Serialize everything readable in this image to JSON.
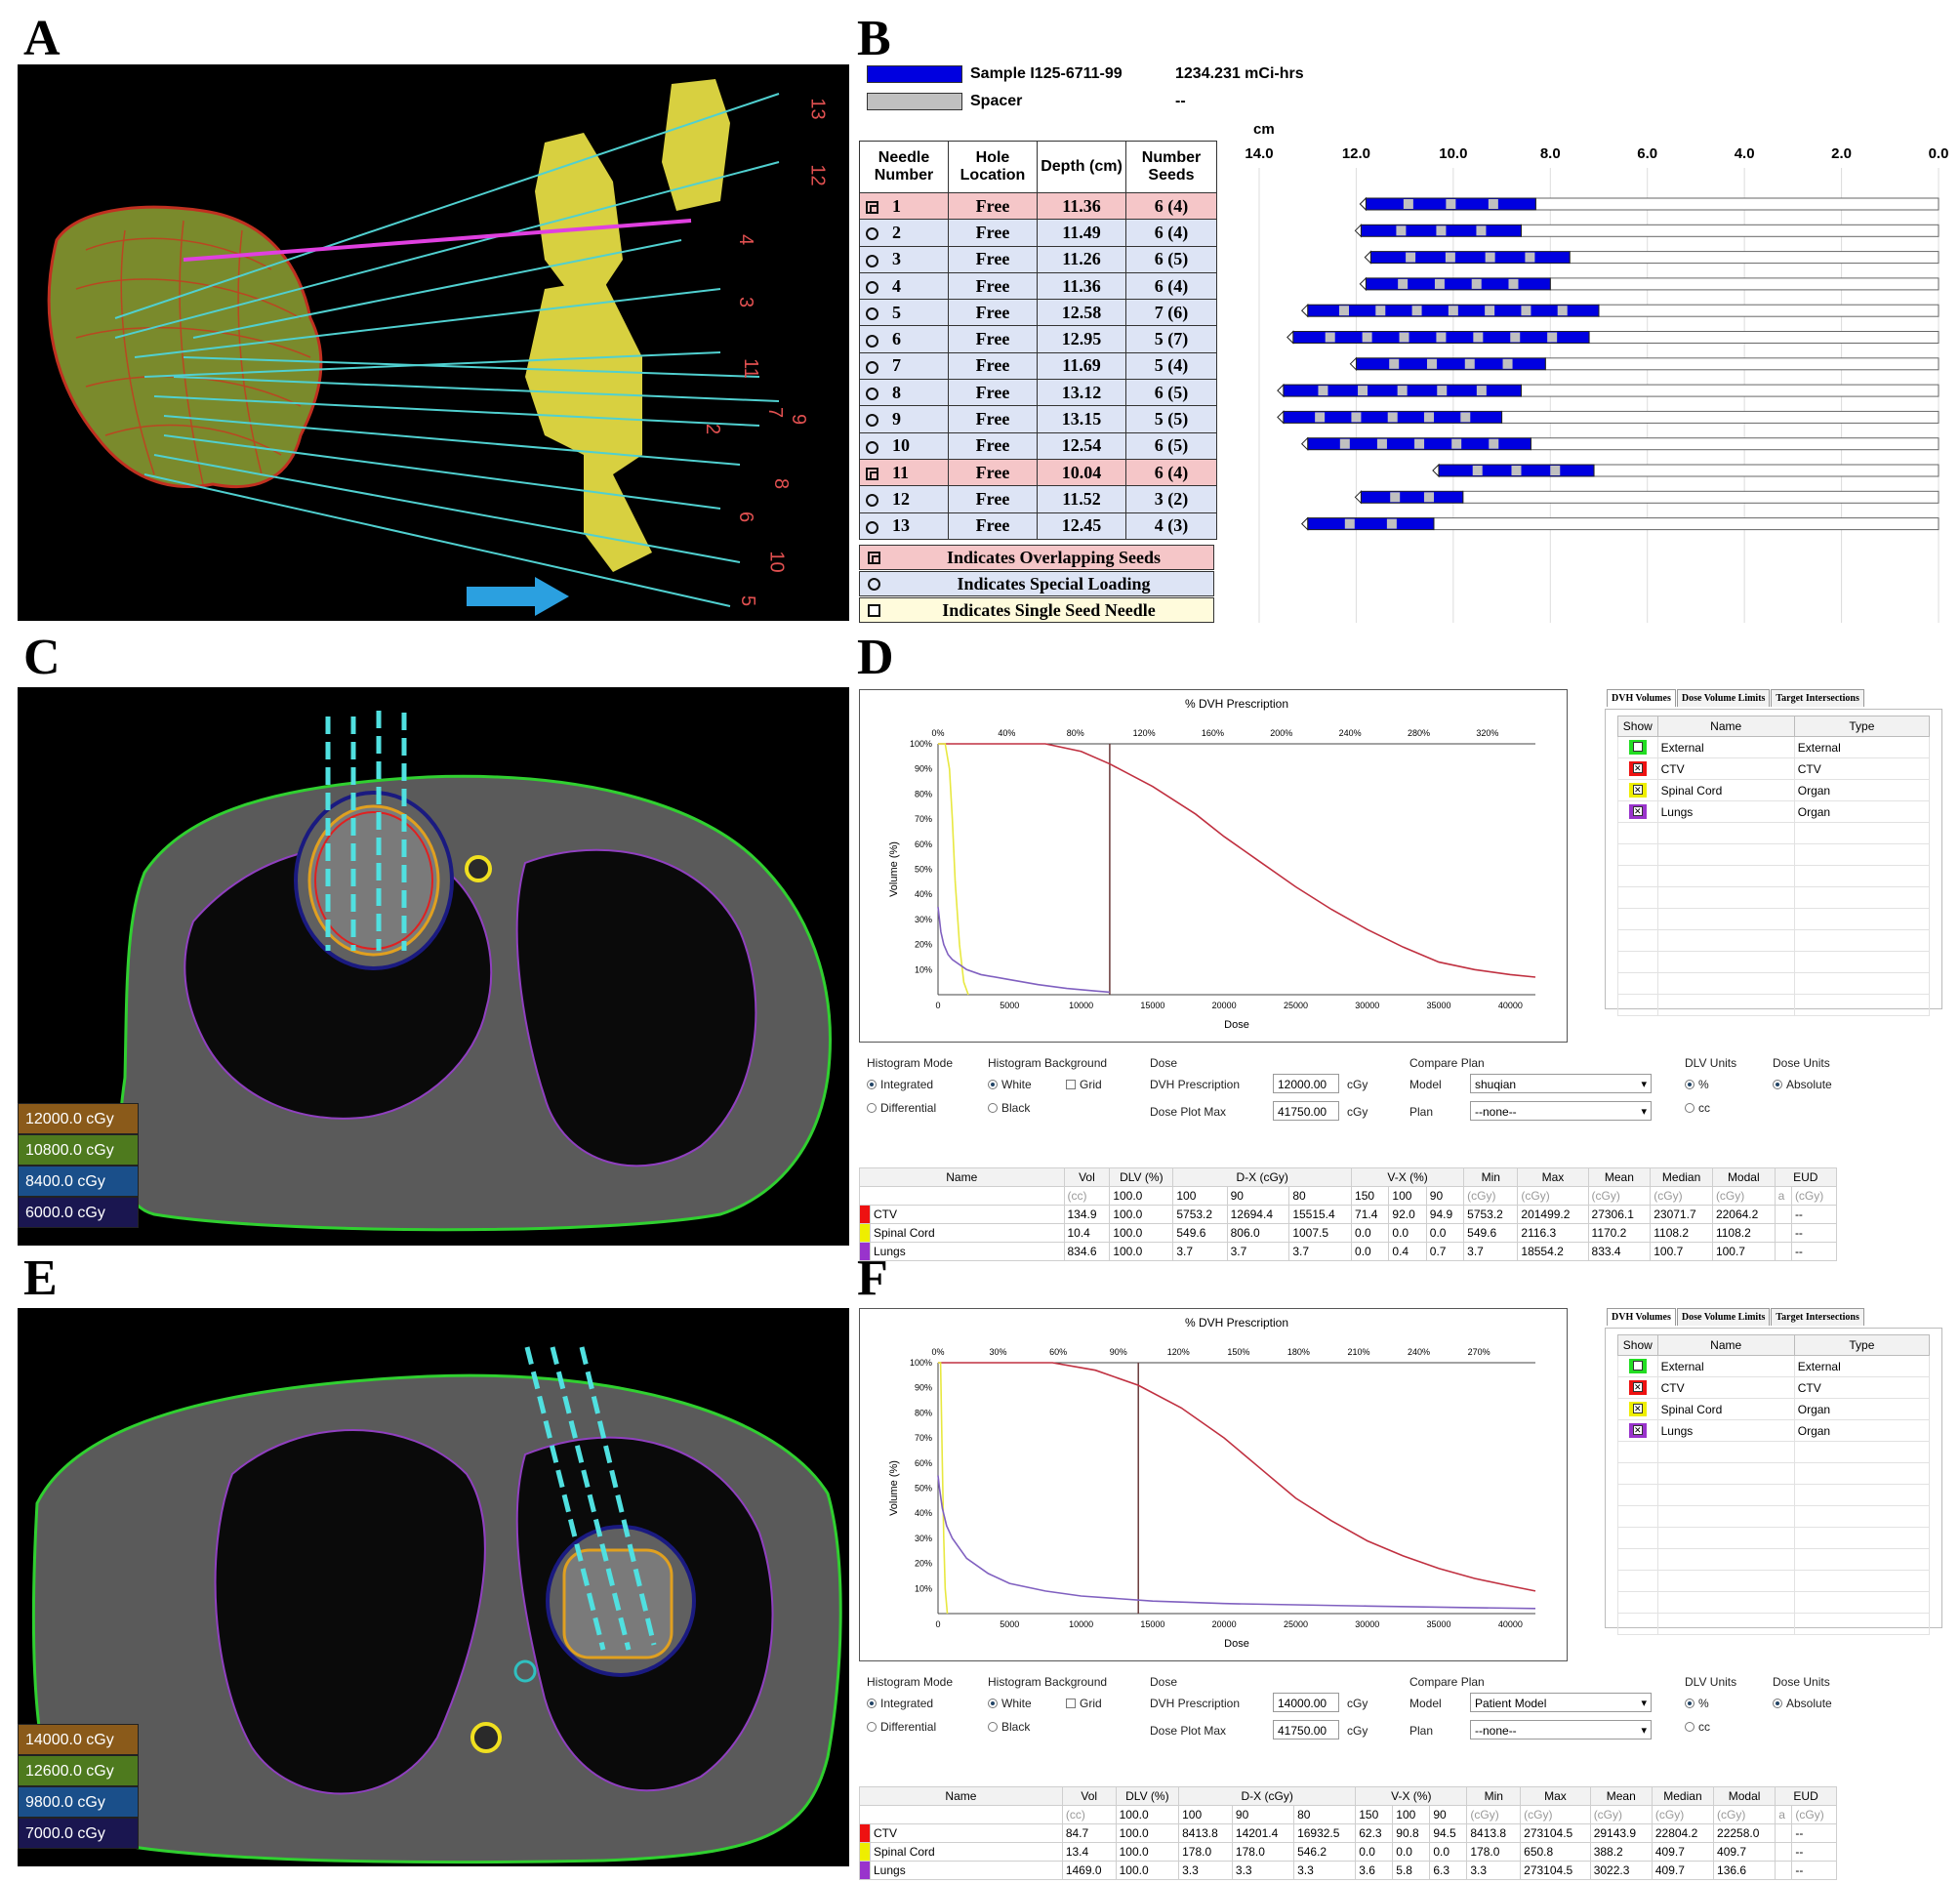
{
  "panel_labels": {
    "a": "A",
    "b": "B",
    "c": "C",
    "d": "D",
    "e": "E",
    "f": "F"
  },
  "panel_a": {
    "needle_labels": [
      "13",
      "12",
      "4",
      "3",
      "11",
      "7",
      "9",
      "2",
      "8",
      "6",
      "10",
      "5"
    ]
  },
  "panel_b": {
    "legend": [
      {
        "name": "Sample I125-6711-99",
        "value": "1234.231 mCi-hrs",
        "color": "#0000e0"
      },
      {
        "name": "Spacer",
        "value": "--",
        "color": "#c0c0c0"
      }
    ],
    "columns": [
      "Needle Number",
      "Hole Location",
      "Depth (cm)",
      "Number Seeds"
    ],
    "rows": [
      {
        "num": "1",
        "loc": "Free",
        "depth": "11.36",
        "seeds": "6 (4)",
        "flag": "overlap"
      },
      {
        "num": "2",
        "loc": "Free",
        "depth": "11.49",
        "seeds": "6 (4)",
        "flag": "special"
      },
      {
        "num": "3",
        "loc": "Free",
        "depth": "11.26",
        "seeds": "6 (5)",
        "flag": "special"
      },
      {
        "num": "4",
        "loc": "Free",
        "depth": "11.36",
        "seeds": "6 (4)",
        "flag": "special"
      },
      {
        "num": "5",
        "loc": "Free",
        "depth": "12.58",
        "seeds": "7 (6)",
        "flag": "special"
      },
      {
        "num": "6",
        "loc": "Free",
        "depth": "12.95",
        "seeds": "5 (7)",
        "flag": "special"
      },
      {
        "num": "7",
        "loc": "Free",
        "depth": "11.69",
        "seeds": "5 (4)",
        "flag": "special"
      },
      {
        "num": "8",
        "loc": "Free",
        "depth": "13.12",
        "seeds": "6 (5)",
        "flag": "special"
      },
      {
        "num": "9",
        "loc": "Free",
        "depth": "13.15",
        "seeds": "5 (5)",
        "flag": "special"
      },
      {
        "num": "10",
        "loc": "Free",
        "depth": "12.54",
        "seeds": "6 (5)",
        "flag": "special"
      },
      {
        "num": "11",
        "loc": "Free",
        "depth": "10.04",
        "seeds": "6 (4)",
        "flag": "overlap"
      },
      {
        "num": "12",
        "loc": "Free",
        "depth": "11.52",
        "seeds": "3 (2)",
        "flag": "special"
      },
      {
        "num": "13",
        "loc": "Free",
        "depth": "12.45",
        "seeds": "4 (3)",
        "flag": "special"
      }
    ],
    "key": [
      "Indicates Overlapping Seeds",
      "Indicates Special Loading",
      "Indicates Single Seed Needle"
    ],
    "axis_unit": "cm",
    "axis_ticks": [
      "14.0",
      "12.0",
      "10.0",
      "8.0",
      "6.0",
      "4.0",
      "2.0",
      "0.0"
    ],
    "needle_spans": [
      {
        "start": 11.8,
        "end": 8.3
      },
      {
        "start": 11.9,
        "end": 8.6
      },
      {
        "start": 11.7,
        "end": 7.6
      },
      {
        "start": 11.8,
        "end": 8.0
      },
      {
        "start": 13.0,
        "end": 7.0
      },
      {
        "start": 13.3,
        "end": 7.2
      },
      {
        "start": 12.0,
        "end": 8.1
      },
      {
        "start": 13.5,
        "end": 8.6
      },
      {
        "start": 13.5,
        "end": 9.0
      },
      {
        "start": 13.0,
        "end": 8.4
      },
      {
        "start": 10.3,
        "end": 7.1
      },
      {
        "start": 11.9,
        "end": 9.8
      },
      {
        "start": 13.0,
        "end": 10.4
      }
    ]
  },
  "panel_c": {
    "dose_legend": [
      {
        "label": "12000.0 cGy",
        "color": "#8a5a1a"
      },
      {
        "label": "10800.0 cGy",
        "color": "#4e7a1e"
      },
      {
        "label": "8400.0 cGy",
        "color": "#1a4f8a"
      },
      {
        "label": "6000.0 cGy",
        "color": "#1a1650"
      }
    ]
  },
  "panel_e": {
    "dose_legend": [
      {
        "label": "14000.0 cGy",
        "color": "#8a5a1a"
      },
      {
        "label": "12600.0 cGy",
        "color": "#4e7a1e"
      },
      {
        "label": "9800.0 cGy",
        "color": "#1a4f8a"
      },
      {
        "label": "7000.0 cGy",
        "color": "#1a1650"
      }
    ]
  },
  "panel_d": {
    "chart_title": "% DVH Prescription",
    "x_label": "Dose",
    "y_label": "Volume (%)",
    "top_ticks": [
      "0%",
      "40%",
      "80%",
      "120%",
      "160%",
      "200%",
      "240%",
      "280%",
      "320%"
    ],
    "bottom_ticks": [
      "0",
      "5000",
      "10000",
      "15000",
      "20000",
      "25000",
      "30000",
      "35000",
      "40000"
    ],
    "y_ticks": [
      "100%",
      "90%",
      "80%",
      "70%",
      "60%",
      "50%",
      "40%",
      "30%",
      "20%",
      "10%"
    ],
    "tabs": [
      "DVH Volumes",
      "Dose Volume Limits",
      "Target Intersections"
    ],
    "show_headers": [
      "Show",
      "Name",
      "Type"
    ],
    "structures": [
      {
        "name": "External",
        "type": "External",
        "color": "#22dd22",
        "checked": false
      },
      {
        "name": "CTV",
        "type": "CTV",
        "color": "#ee1111",
        "checked": true
      },
      {
        "name": "Spinal Cord",
        "type": "Organ",
        "color": "#eeee00",
        "checked": true
      },
      {
        "name": "Lungs",
        "type": "Organ",
        "color": "#9933cc",
        "checked": true
      }
    ],
    "controls": {
      "hist_mode_title": "Histogram Mode",
      "integrated": "Integrated",
      "differential": "Differential",
      "hist_bg_title": "Histogram Background",
      "white": "White",
      "black": "Black",
      "grid": "Grid",
      "dose_title": "Dose",
      "dvh_prescription_label": "DVH Prescription",
      "dvh_prescription_value": "12000.00",
      "dose_plot_max_label": "Dose Plot Max",
      "dose_plot_max_value": "41750.00",
      "unit": "cGy",
      "compare_title": "Compare Plan",
      "model_label": "Model",
      "model_value": "shuqian",
      "plan_label": "Plan",
      "plan_value": "--none--",
      "dlv_units_title": "DLV Units",
      "percent": "%",
      "cc": "cc",
      "dose_units_title": "Dose Units",
      "absolute": "Absolute"
    },
    "stats_header": [
      "Name",
      "Vol",
      "DLV (%)",
      "D-X (cGy)",
      "V-X (%)",
      "Min",
      "Max",
      "Mean",
      "Median",
      "Modal",
      "EUD"
    ],
    "stats_sub": [
      "(cc)",
      "100.0",
      "100",
      "90",
      "80",
      "150",
      "100",
      "90",
      "(cGy)",
      "(cGy)",
      "(cGy)",
      "(cGy)",
      "(cGy)",
      "a",
      "(cGy)"
    ],
    "stats_rows": [
      {
        "color": "#ee1111",
        "cells": [
          "CTV",
          "134.9",
          "100.0",
          "5753.2",
          "12694.4",
          "15515.4",
          "71.4",
          "92.0",
          "94.9",
          "5753.2",
          "201499.2",
          "27306.1",
          "23071.7",
          "22064.2",
          "",
          "--"
        ]
      },
      {
        "color": "#eeee00",
        "cells": [
          "Spinal Cord",
          "10.4",
          "100.0",
          "549.6",
          "806.0",
          "1007.5",
          "0.0",
          "0.0",
          "0.0",
          "549.6",
          "2116.3",
          "1170.2",
          "1108.2",
          "1108.2",
          "",
          "--"
        ]
      },
      {
        "color": "#9933cc",
        "cells": [
          "Lungs",
          "834.6",
          "100.0",
          "3.7",
          "3.7",
          "3.7",
          "0.0",
          "0.4",
          "0.7",
          "3.7",
          "18554.2",
          "833.4",
          "100.7",
          "100.7",
          "",
          "--"
        ]
      }
    ]
  },
  "panel_f": {
    "chart_title": "% DVH Prescription",
    "x_label": "Dose",
    "y_label": "Volume (%)",
    "top_ticks": [
      "0%",
      "30%",
      "60%",
      "90%",
      "120%",
      "150%",
      "180%",
      "210%",
      "240%",
      "270%"
    ],
    "bottom_ticks": [
      "0",
      "5000",
      "10000",
      "15000",
      "20000",
      "25000",
      "30000",
      "35000",
      "40000"
    ],
    "y_ticks": [
      "100%",
      "90%",
      "80%",
      "70%",
      "60%",
      "50%",
      "40%",
      "30%",
      "20%",
      "10%"
    ],
    "tabs": [
      "DVH Volumes",
      "Dose Volume Limits",
      "Target Intersections"
    ],
    "show_headers": [
      "Show",
      "Name",
      "Type"
    ],
    "structures": [
      {
        "name": "External",
        "type": "External",
        "color": "#22dd22",
        "checked": false
      },
      {
        "name": "CTV",
        "type": "CTV",
        "color": "#ee1111",
        "checked": true
      },
      {
        "name": "Spinal Cord",
        "type": "Organ",
        "color": "#eeee00",
        "checked": true
      },
      {
        "name": "Lungs",
        "type": "Organ",
        "color": "#9933cc",
        "checked": true
      }
    ],
    "controls": {
      "hist_mode_title": "Histogram Mode",
      "integrated": "Integrated",
      "differential": "Differential",
      "hist_bg_title": "Histogram Background",
      "white": "White",
      "black": "Black",
      "grid": "Grid",
      "dose_title": "Dose",
      "dvh_prescription_label": "DVH Prescription",
      "dvh_prescription_value": "14000.00",
      "dose_plot_max_label": "Dose Plot Max",
      "dose_plot_max_value": "41750.00",
      "unit": "cGy",
      "compare_title": "Compare Plan",
      "model_label": "Model",
      "model_value": "Patient Model",
      "plan_label": "Plan",
      "plan_value": "--none--",
      "dlv_units_title": "DLV Units",
      "percent": "%",
      "cc": "cc",
      "dose_units_title": "Dose Units",
      "absolute": "Absolute"
    },
    "stats_header": [
      "Name",
      "Vol",
      "DLV (%)",
      "D-X (cGy)",
      "V-X (%)",
      "Min",
      "Max",
      "Mean",
      "Median",
      "Modal",
      "EUD"
    ],
    "stats_sub": [
      "(cc)",
      "100.0",
      "100",
      "90",
      "80",
      "150",
      "100",
      "90",
      "(cGy)",
      "(cGy)",
      "(cGy)",
      "(cGy)",
      "(cGy)",
      "a",
      "(cGy)"
    ],
    "stats_rows": [
      {
        "color": "#ee1111",
        "cells": [
          "CTV",
          "84.7",
          "100.0",
          "8413.8",
          "14201.4",
          "16932.5",
          "62.3",
          "90.8",
          "94.5",
          "8413.8",
          "273104.5",
          "29143.9",
          "22804.2",
          "22258.0",
          "",
          "--"
        ]
      },
      {
        "color": "#eeee00",
        "cells": [
          "Spinal Cord",
          "13.4",
          "100.0",
          "178.0",
          "178.0",
          "546.2",
          "0.0",
          "0.0",
          "0.0",
          "178.0",
          "650.8",
          "388.2",
          "409.7",
          "409.7",
          "",
          "--"
        ]
      },
      {
        "color": "#9933cc",
        "cells": [
          "Lungs",
          "1469.0",
          "100.0",
          "3.3",
          "3.3",
          "3.3",
          "3.6",
          "5.8",
          "6.3",
          "3.3",
          "273104.5",
          "3022.3",
          "409.7",
          "136.6",
          "",
          "--"
        ]
      }
    ]
  },
  "chart_data": [
    {
      "type": "line",
      "title": "% DVH Prescription",
      "xlabel": "Dose",
      "ylabel": "Volume (%)",
      "xlim": [
        0,
        41750
      ],
      "ylim": [
        0,
        100
      ],
      "prescription": 12000,
      "series": [
        {
          "name": "CTV",
          "x": [
            0,
            5000,
            7500,
            10000,
            12000,
            15000,
            18000,
            20000,
            22500,
            25000,
            27500,
            30000,
            32500,
            35000,
            37500,
            40000,
            41750
          ],
          "y": [
            100,
            100,
            100,
            97,
            92,
            83,
            72,
            63,
            53,
            43,
            34,
            26,
            19,
            13,
            10,
            8,
            7
          ]
        },
        {
          "name": "Spinal Cord",
          "x": [
            0,
            500,
            800,
            1000,
            1200,
            1500,
            1800,
            2116
          ],
          "y": [
            100,
            100,
            90,
            70,
            45,
            20,
            5,
            0
          ]
        },
        {
          "name": "Lungs",
          "x": [
            0,
            100,
            200,
            400,
            700,
            1000,
            2000,
            3000,
            5000,
            7000,
            9000,
            11000,
            12000
          ],
          "y": [
            35,
            30,
            25,
            20,
            16,
            14,
            10,
            8,
            6,
            4,
            2.5,
            1.5,
            1
          ]
        }
      ]
    },
    {
      "type": "line",
      "title": "% DVH Prescription",
      "xlabel": "Dose",
      "ylabel": "Volume (%)",
      "xlim": [
        0,
        41750
      ],
      "ylim": [
        0,
        100
      ],
      "prescription": 14000,
      "series": [
        {
          "name": "CTV",
          "x": [
            0,
            5000,
            8000,
            11000,
            14000,
            17000,
            20000,
            22500,
            25000,
            27500,
            30000,
            32500,
            35000,
            37500,
            40000,
            41750
          ],
          "y": [
            100,
            100,
            100,
            97,
            91,
            82,
            70,
            58,
            46,
            37,
            29,
            23,
            18,
            14,
            11,
            9
          ]
        },
        {
          "name": "Spinal Cord",
          "x": [
            0,
            178,
            300,
            400,
            500,
            650
          ],
          "y": [
            100,
            100,
            60,
            30,
            10,
            0
          ]
        },
        {
          "name": "Lungs",
          "x": [
            0,
            100,
            300,
            600,
            1000,
            2000,
            3500,
            5000,
            7500,
            10000,
            15000,
            20000,
            30000,
            41750
          ],
          "y": [
            55,
            50,
            42,
            35,
            30,
            22,
            16,
            12,
            9,
            7,
            5,
            4,
            3,
            2
          ]
        }
      ]
    }
  ]
}
